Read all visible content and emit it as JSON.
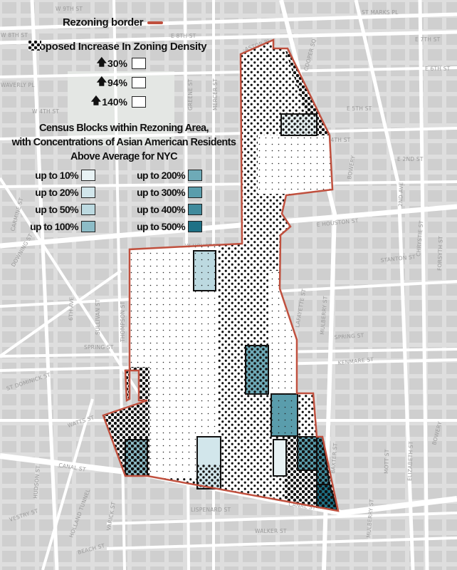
{
  "legend": {
    "border_label": "Rezoning border",
    "border_color": "#c0503e",
    "density_title": "Proposed Increase In Zoning Density",
    "density_levels": [
      {
        "label": "30%",
        "icon": "arrow-up-icon",
        "pattern": "small-dots"
      },
      {
        "label": "94%",
        "icon": "arrow-up-icon",
        "pattern": "medium-dots"
      },
      {
        "label": "140%",
        "icon": "arrow-up-icon",
        "pattern": "large-dots"
      }
    ],
    "census_title_1": "Census Blocks within Rezoning Area,",
    "census_title_2": "with Concentrations of Asian American Residents",
    "census_title_3": "Above Average for NYC",
    "census_levels": [
      {
        "label": "up to 10%",
        "color": "#e8f2f4"
      },
      {
        "label": "up to 20%",
        "color": "#d2e6eb"
      },
      {
        "label": "up to 50%",
        "color": "#bcd9e0"
      },
      {
        "label": "up to 100%",
        "color": "#8dbcc7"
      },
      {
        "label": "up to 200%",
        "color": "#6eaab7"
      },
      {
        "label": "up to 300%",
        "color": "#5a9dac"
      },
      {
        "label": "up to 400%",
        "color": "#3f8a9c"
      },
      {
        "label": "up to 500%",
        "color": "#1e7186"
      }
    ]
  },
  "streets": [
    "W 9TH ST",
    "ST MARKS PL",
    "E 8TH ST",
    "W 8TH ST",
    "E 7TH ST",
    "E 6TH ST",
    "WAVERLY PL",
    "E 5TH ST",
    "W 4TH ST",
    "E 4TH ST",
    "E 2ND ST",
    "BOND ST",
    "BOWERY",
    "2ND AVE",
    "E HOUSTON ST",
    "W HOUSTON ST",
    "STANTON ST",
    "CHRYSTIE ST",
    "FORSYTH ST",
    "PRINCE ST",
    "SPRING ST",
    "KENMARE ST",
    "LAFAYETTE ST",
    "MULBERRY ST",
    "SULLIVAN ST",
    "THOMPSON ST",
    "6TH AVE",
    "W BROADWAY",
    "BROOME ST",
    "GRAND ST",
    "WATTS ST",
    "CANAL ST",
    "HUDSON ST",
    "VESTRY ST",
    "HOLLAND TUNNEL",
    "VARICK ST",
    "LISPENARD ST",
    "WALKER ST",
    "BEACH ST",
    "BAXTER ST",
    "MOTT ST",
    "ELIZABETH ST",
    "ASTOR PL",
    "COOPER SQ",
    "MERCER ST",
    "CARMINE ST",
    "DOWNING ST",
    "ST DOMINICK ST"
  ]
}
